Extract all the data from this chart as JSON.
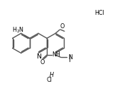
{
  "bg": "#ffffff",
  "lc": "#555555",
  "tc": "#000000",
  "lw": 1.0,
  "fs": 5.8,
  "figsize": [
    1.79,
    1.32
  ],
  "dpi": 100,
  "xlim": [
    0.0,
    9.5
  ],
  "ylim": [
    0.3,
    6.8
  ]
}
